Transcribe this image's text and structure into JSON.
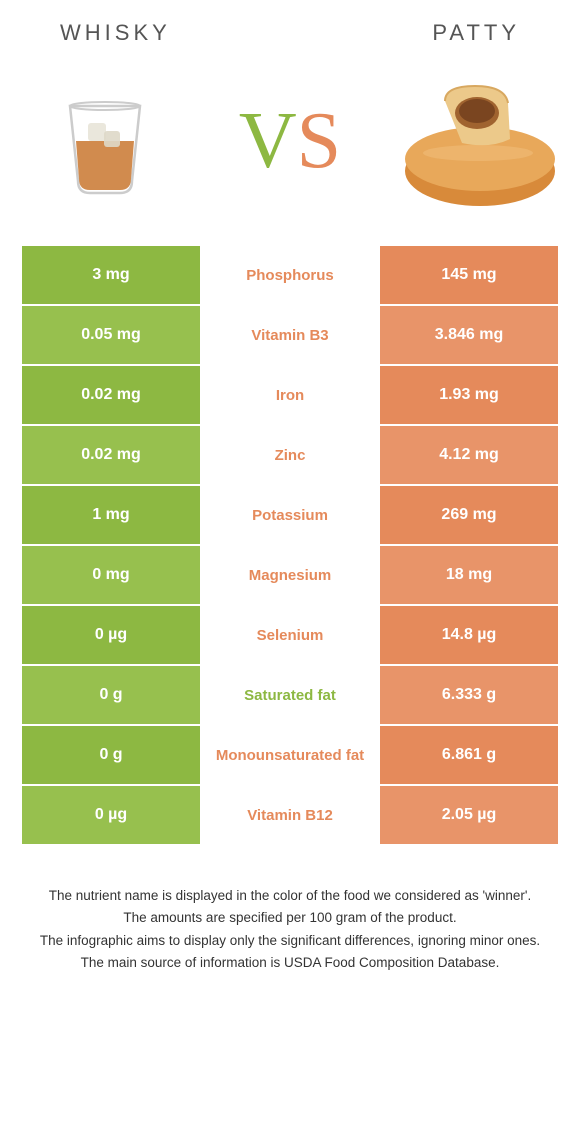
{
  "header": {
    "left_label": "WHISKY",
    "right_label": "PATTY"
  },
  "colors": {
    "left": "#8db842",
    "right": "#e58a5b",
    "left_alt": "#97c04e",
    "right_alt": "#e89469",
    "mid_text_default": "#e58a5b",
    "header_text": "#555555",
    "footer_text": "#333333"
  },
  "vs": {
    "v": "V",
    "s": "S"
  },
  "rows": [
    {
      "left": "3 mg",
      "label": "Phosphorus",
      "right": "145 mg",
      "winner": "right"
    },
    {
      "left": "0.05 mg",
      "label": "Vitamin B3",
      "right": "3.846 mg",
      "winner": "right"
    },
    {
      "left": "0.02 mg",
      "label": "Iron",
      "right": "1.93 mg",
      "winner": "right"
    },
    {
      "left": "0.02 mg",
      "label": "Zinc",
      "right": "4.12 mg",
      "winner": "right"
    },
    {
      "left": "1 mg",
      "label": "Potassium",
      "right": "269 mg",
      "winner": "right"
    },
    {
      "left": "0 mg",
      "label": "Magnesium",
      "right": "18 mg",
      "winner": "right"
    },
    {
      "left": "0 µg",
      "label": "Selenium",
      "right": "14.8 µg",
      "winner": "right"
    },
    {
      "left": "0 g",
      "label": "Saturated fat",
      "right": "6.333 g",
      "winner": "left"
    },
    {
      "left": "0 g",
      "label": "Monounsaturated fat",
      "right": "6.861 g",
      "winner": "right"
    },
    {
      "left": "0 µg",
      "label": "Vitamin B12",
      "right": "2.05 µg",
      "winner": "right"
    }
  ],
  "footer": {
    "line1": "The nutrient name is displayed in the color of the food we considered as 'winner'.",
    "line2": "The amounts are specified per 100 gram of the product.",
    "line3": "The infographic aims to display only the significant differences, ignoring minor ones.",
    "line4": "The main source of information is USDA Food Composition Database."
  }
}
